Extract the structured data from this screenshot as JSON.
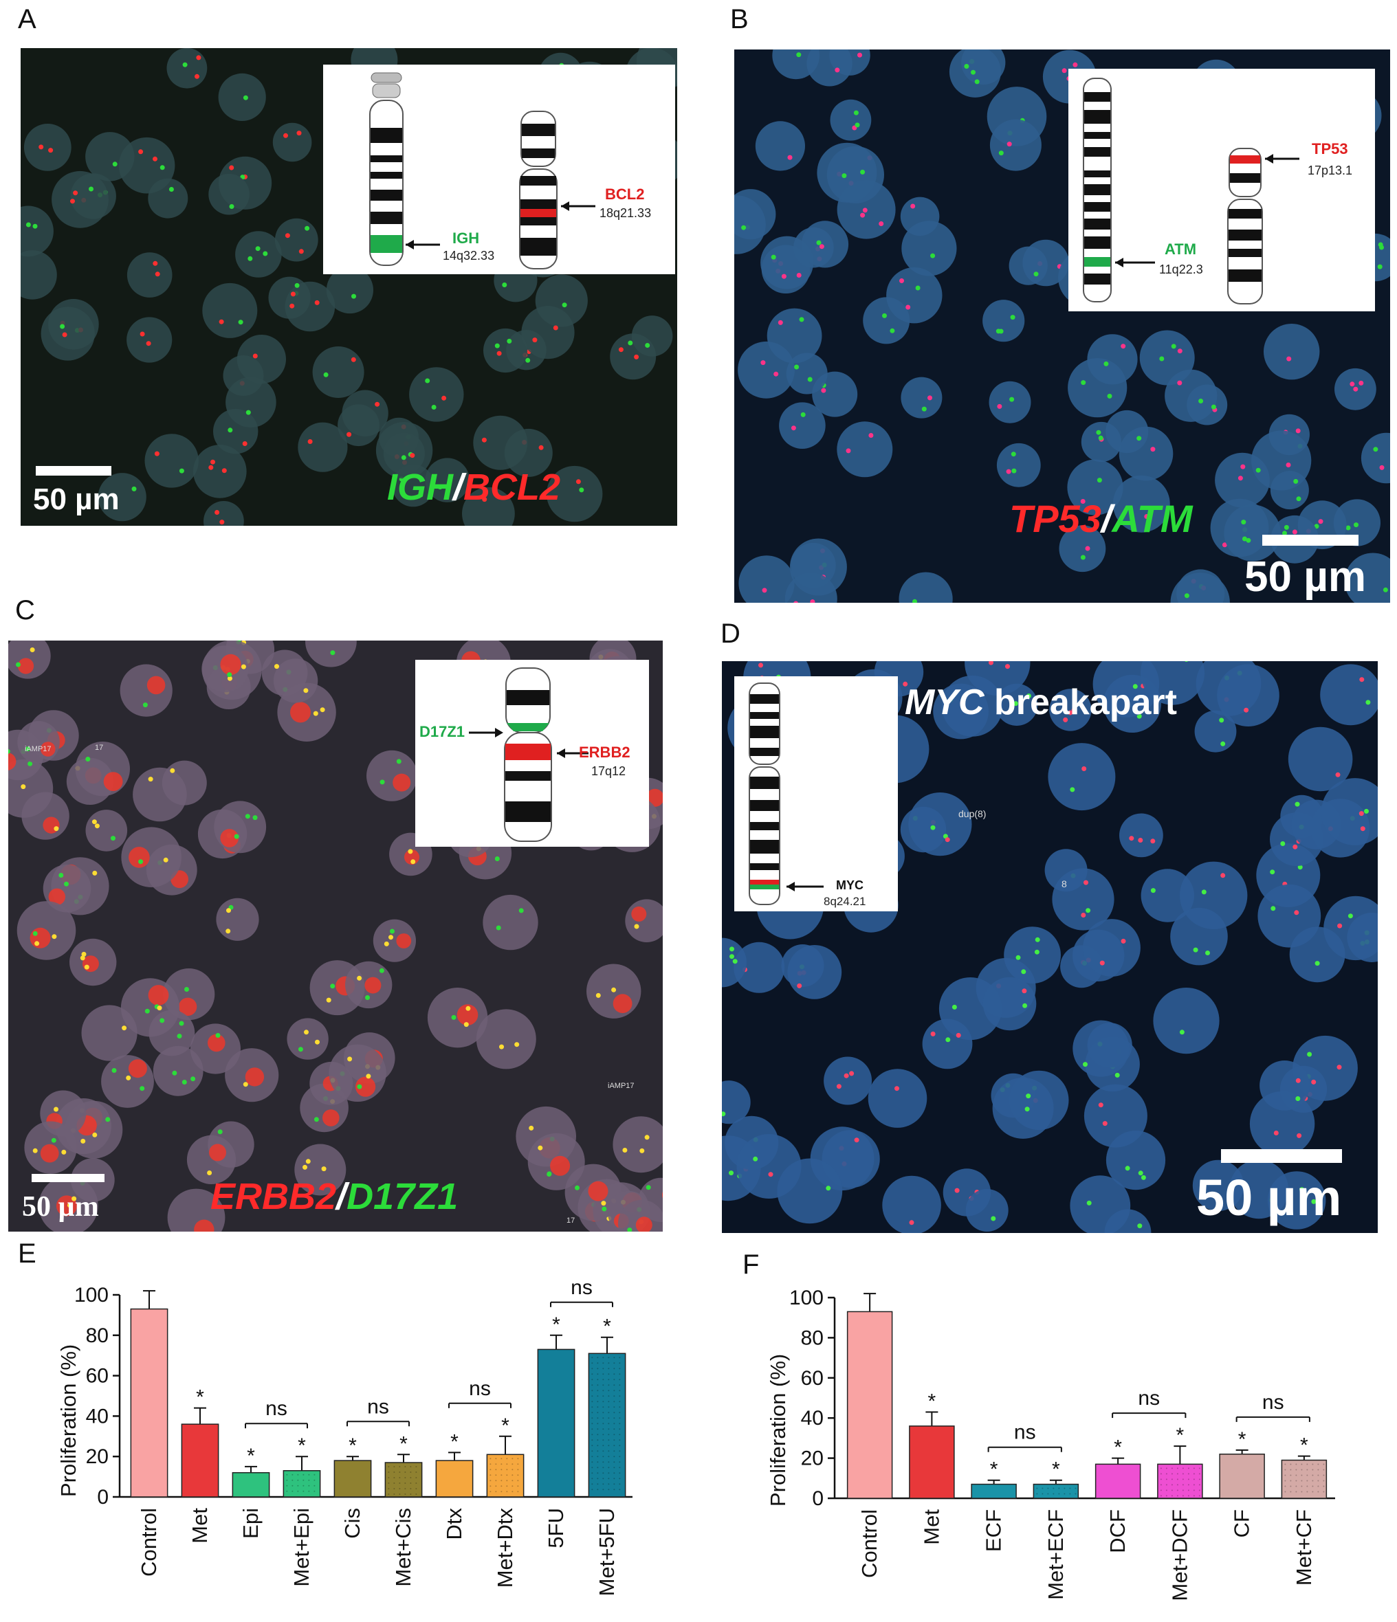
{
  "panel_labels": {
    "a": "A",
    "b": "B",
    "c": "C",
    "d": "D",
    "e": "E",
    "f": "F"
  },
  "panel_a": {
    "probe_green": "IGH",
    "probe_sep": "/",
    "probe_red": "BCL2",
    "scale": "50 µm",
    "inset": {
      "green_gene": "IGH",
      "green_locus": "14q32.33",
      "red_gene": "BCL2",
      "red_locus": "18q21.33"
    }
  },
  "panel_b": {
    "probe_red": "TP53",
    "probe_sep": "/",
    "probe_green": "ATM",
    "scale": "50 µm",
    "inset": {
      "red_gene": "TP53",
      "red_locus": "17p13.1",
      "green_gene": "ATM",
      "green_locus": "11q22.3"
    }
  },
  "panel_c": {
    "probe_red": "ERBB2",
    "probe_sep": "/",
    "probe_green": "D17Z1",
    "scale": "50 µm",
    "annotations": [
      "iAMP17",
      "17",
      "iAMP17",
      "17"
    ],
    "inset": {
      "green_gene": "D17Z1",
      "red_gene": "ERBB2",
      "red_locus": "17q12"
    }
  },
  "panel_d": {
    "title_gene": "MYC",
    "title_rest": " breakapart",
    "scale": "50 µm",
    "annotations": [
      "dup(8)",
      "8"
    ],
    "inset": {
      "gene": "MYC",
      "locus": "8q24.21"
    }
  },
  "chart_data": [
    {
      "type": "bar",
      "panel": "E",
      "ylabel": "Proliferation (%)",
      "ylim": [
        0,
        100
      ],
      "yticks": [
        0,
        20,
        40,
        60,
        80,
        100
      ],
      "categories": [
        "Control",
        "Met",
        "Epi",
        "Met+Epi",
        "Cis",
        "Met+Cis",
        "Dtx",
        "Met+Dtx",
        "5FU",
        "Met+5FU"
      ],
      "values": [
        93,
        36,
        12,
        13,
        18,
        17,
        18,
        21,
        73,
        71
      ],
      "errors": [
        9,
        8,
        3,
        7,
        2,
        4,
        4,
        9,
        7,
        8
      ],
      "colors": [
        "#f9a3a3",
        "#e8383a",
        "#2ec27e",
        "#2ec27e",
        "#8f8130",
        "#8f8130",
        "#f5a73e",
        "#f5a73e",
        "#137f99",
        "#137f99"
      ],
      "significance": [
        "",
        "*",
        "*",
        "*",
        "*",
        "*",
        "*",
        "*",
        "*",
        "*"
      ],
      "comparisons": [
        {
          "from": 2,
          "to": 3,
          "label": "ns"
        },
        {
          "from": 4,
          "to": 5,
          "label": "ns"
        },
        {
          "from": 6,
          "to": 7,
          "label": "ns"
        },
        {
          "from": 8,
          "to": 9,
          "label": "ns"
        }
      ]
    },
    {
      "type": "bar",
      "panel": "F",
      "ylabel": "Proliferation (%)",
      "ylim": [
        0,
        100
      ],
      "yticks": [
        0,
        20,
        40,
        60,
        80,
        100
      ],
      "categories": [
        "Control",
        "Met",
        "ECF",
        "Met+ECF",
        "DCF",
        "Met+DCF",
        "CF",
        "Met+CF"
      ],
      "values": [
        93,
        36,
        7,
        7,
        17,
        17,
        22,
        19
      ],
      "errors": [
        9,
        7,
        2,
        2,
        3,
        9,
        2,
        2
      ],
      "colors": [
        "#f9a3a3",
        "#e8383a",
        "#1a93a8",
        "#1a93a8",
        "#ee4fd2",
        "#ee4fd2",
        "#d4aaa6",
        "#d4aaa6"
      ],
      "significance": [
        "",
        "*",
        "*",
        "*",
        "*",
        "*",
        "*",
        "*"
      ],
      "comparisons": [
        {
          "from": 2,
          "to": 3,
          "label": "ns"
        },
        {
          "from": 4,
          "to": 5,
          "label": "ns"
        },
        {
          "from": 6,
          "to": 7,
          "label": "ns"
        }
      ]
    }
  ]
}
